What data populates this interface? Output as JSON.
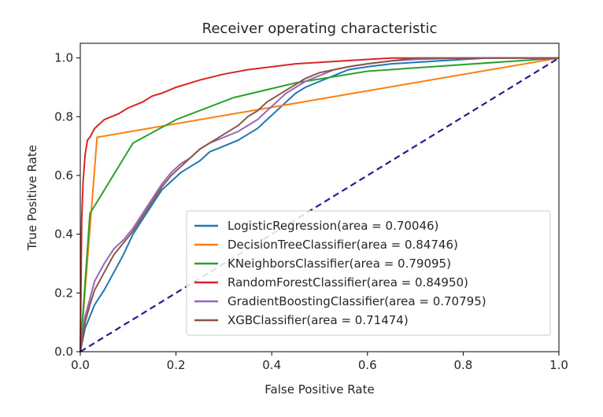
{
  "chart_data": {
    "type": "line",
    "title": "Receiver operating characteristic",
    "xlabel": "False Positive Rate",
    "ylabel": "True Positive Rate",
    "xlim": [
      0.0,
      1.0
    ],
    "ylim": [
      0.0,
      1.05
    ],
    "xticks": [
      "0.0",
      "0.2",
      "0.4",
      "0.6",
      "0.8",
      "1.0"
    ],
    "yticks": [
      "0.0",
      "0.2",
      "0.4",
      "0.6",
      "0.8",
      "1.0"
    ],
    "grid": false,
    "legend_position": "lower-right",
    "series": [
      {
        "name": "LogisticRegression(area = 0.70046)",
        "color": "#1f77b4",
        "x": [
          0,
          0.01,
          0.02,
          0.03,
          0.05,
          0.07,
          0.09,
          0.11,
          0.13,
          0.15,
          0.17,
          0.19,
          0.21,
          0.23,
          0.25,
          0.27,
          0.3,
          0.33,
          0.35,
          0.37,
          0.39,
          0.41,
          0.43,
          0.45,
          0.47,
          0.5,
          0.53,
          0.56,
          0.6,
          0.65,
          0.7,
          0.75,
          0.8,
          0.85,
          0.9,
          0.95,
          1.0
        ],
        "y": [
          0,
          0.08,
          0.12,
          0.16,
          0.21,
          0.27,
          0.33,
          0.4,
          0.45,
          0.5,
          0.55,
          0.58,
          0.61,
          0.63,
          0.65,
          0.68,
          0.7,
          0.72,
          0.74,
          0.76,
          0.79,
          0.82,
          0.85,
          0.88,
          0.9,
          0.92,
          0.94,
          0.96,
          0.97,
          0.98,
          0.985,
          0.99,
          0.995,
          1.0,
          1.0,
          1.0,
          1.0
        ]
      },
      {
        "name": "DecisionTreeClassifier(area = 0.84746)",
        "color": "#ff7f0e",
        "x": [
          0,
          0.035,
          1.0
        ],
        "y": [
          0,
          0.73,
          1.0
        ]
      },
      {
        "name": "KNeighborsClassifier(area = 0.79095)",
        "color": "#2ca02c",
        "x": [
          0,
          0.02,
          0.11,
          0.2,
          0.32,
          0.45,
          0.6,
          1.0
        ],
        "y": [
          0,
          0.47,
          0.71,
          0.79,
          0.865,
          0.915,
          0.955,
          1.0
        ]
      },
      {
        "name": "RandomForestClassifier(area = 0.84950)",
        "color": "#d62728",
        "x": [
          0,
          0.003,
          0.006,
          0.01,
          0.015,
          0.02,
          0.03,
          0.05,
          0.08,
          0.1,
          0.13,
          0.15,
          0.17,
          0.2,
          0.25,
          0.3,
          0.35,
          0.4,
          0.45,
          0.5,
          0.55,
          0.6,
          0.65,
          0.7,
          0.8,
          0.9,
          1.0
        ],
        "y": [
          0,
          0.45,
          0.58,
          0.67,
          0.72,
          0.73,
          0.76,
          0.79,
          0.81,
          0.83,
          0.85,
          0.87,
          0.88,
          0.9,
          0.925,
          0.945,
          0.96,
          0.97,
          0.98,
          0.985,
          0.99,
          0.995,
          1.0,
          1.0,
          1.0,
          1.0,
          1.0
        ]
      },
      {
        "name": "GradientBoostingClassifier(area = 0.70795)",
        "color": "#9467bd",
        "x": [
          0,
          0.01,
          0.02,
          0.03,
          0.05,
          0.07,
          0.09,
          0.11,
          0.13,
          0.15,
          0.17,
          0.19,
          0.21,
          0.23,
          0.25,
          0.27,
          0.3,
          0.33,
          0.35,
          0.37,
          0.39,
          0.41,
          0.43,
          0.45,
          0.47,
          0.5,
          0.53,
          0.56,
          0.6,
          0.65,
          0.7,
          0.8,
          0.9,
          1.0
        ],
        "y": [
          0,
          0.12,
          0.18,
          0.24,
          0.3,
          0.35,
          0.38,
          0.42,
          0.47,
          0.52,
          0.57,
          0.61,
          0.64,
          0.66,
          0.69,
          0.71,
          0.73,
          0.75,
          0.77,
          0.79,
          0.82,
          0.85,
          0.88,
          0.9,
          0.92,
          0.94,
          0.96,
          0.97,
          0.98,
          0.99,
          0.995,
          1.0,
          1.0,
          1.0
        ]
      },
      {
        "name": "XGBClassifier(area = 0.71474)",
        "color": "#8c564b",
        "x": [
          0,
          0.01,
          0.02,
          0.03,
          0.05,
          0.07,
          0.09,
          0.11,
          0.13,
          0.15,
          0.17,
          0.19,
          0.21,
          0.23,
          0.25,
          0.27,
          0.3,
          0.33,
          0.35,
          0.37,
          0.39,
          0.41,
          0.43,
          0.45,
          0.47,
          0.5,
          0.53,
          0.56,
          0.6,
          0.65,
          0.7,
          0.8,
          0.9,
          1.0
        ],
        "y": [
          0,
          0.1,
          0.16,
          0.21,
          0.27,
          0.33,
          0.37,
          0.41,
          0.46,
          0.51,
          0.56,
          0.6,
          0.63,
          0.66,
          0.69,
          0.71,
          0.74,
          0.77,
          0.8,
          0.82,
          0.85,
          0.87,
          0.89,
          0.91,
          0.93,
          0.95,
          0.96,
          0.97,
          0.98,
          0.99,
          1.0,
          1.0,
          1.0,
          1.0
        ]
      },
      {
        "name": "",
        "color": "#1f1f8f",
        "dashed": true,
        "x": [
          0,
          1.0
        ],
        "y": [
          0,
          1.0
        ]
      }
    ]
  }
}
